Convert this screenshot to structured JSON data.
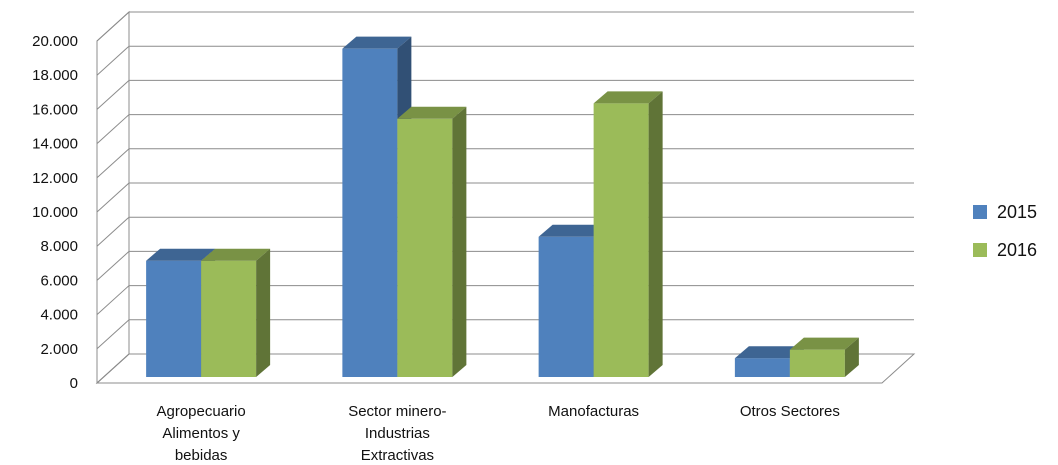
{
  "chart_data": {
    "type": "bar",
    "three_d": true,
    "categories": [
      [
        "Agropecuario",
        "Alimentos y",
        "bebidas"
      ],
      [
        "Sector minero-",
        "Industrias",
        "Extractivas"
      ],
      [
        "Manofacturas"
      ],
      [
        "Otros Sectores"
      ]
    ],
    "series": [
      {
        "name": "2015",
        "color": "#4F81BD",
        "values": [
          6800,
          19200,
          8200,
          1100
        ]
      },
      {
        "name": "2016",
        "color": "#9BBB59",
        "values": [
          6800,
          15100,
          16000,
          1600
        ]
      }
    ],
    "ylim": [
      0,
      20000
    ],
    "y_ticks": [
      0,
      2000,
      4000,
      6000,
      8000,
      10000,
      12000,
      14000,
      16000,
      18000,
      20000
    ],
    "y_tick_labels": [
      "0",
      "2.000",
      "4.000",
      "6.000",
      "8.000",
      "10.000",
      "12.000",
      "14.000",
      "16.000",
      "18.000",
      "20.000"
    ],
    "grid": true,
    "legend_position": "right"
  }
}
